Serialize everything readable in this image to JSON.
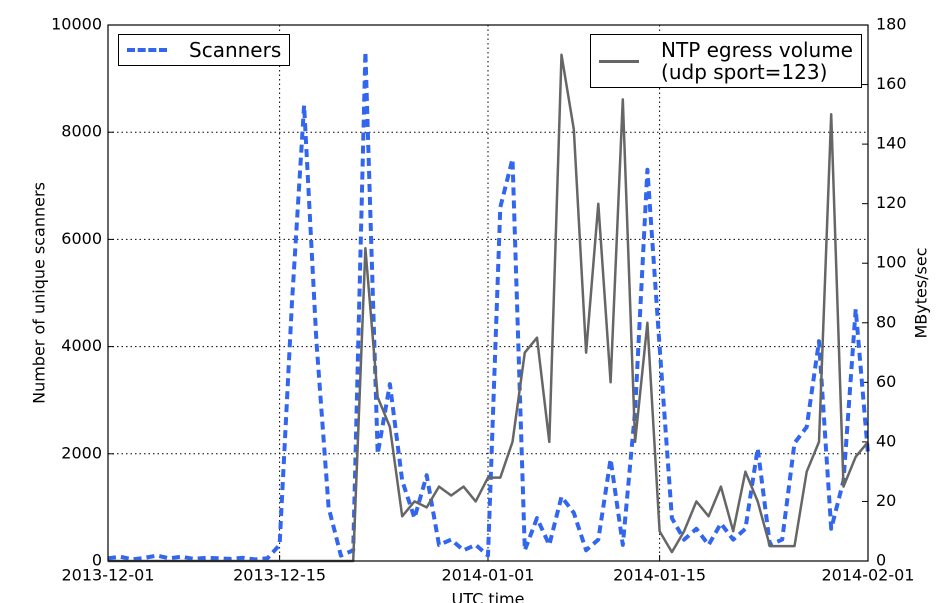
{
  "chart_data": {
    "type": "line",
    "xlabel": "UTC time",
    "ylabel": "Number of unique scanners",
    "y2label": "MBytes/sec",
    "x": [
      "2013-12-01",
      "2013-12-02",
      "2013-12-03",
      "2013-12-04",
      "2013-12-05",
      "2013-12-06",
      "2013-12-07",
      "2013-12-08",
      "2013-12-09",
      "2013-12-10",
      "2013-12-11",
      "2013-12-12",
      "2013-12-13",
      "2013-12-14",
      "2013-12-15",
      "2013-12-16",
      "2013-12-17",
      "2013-12-18",
      "2013-12-19",
      "2013-12-20",
      "2013-12-21",
      "2013-12-22",
      "2013-12-23",
      "2013-12-24",
      "2013-12-25",
      "2013-12-26",
      "2013-12-27",
      "2013-12-28",
      "2013-12-29",
      "2013-12-30",
      "2013-12-31",
      "2014-01-01",
      "2014-01-02",
      "2014-01-03",
      "2014-01-04",
      "2014-01-05",
      "2014-01-06",
      "2014-01-07",
      "2014-01-08",
      "2014-01-09",
      "2014-01-10",
      "2014-01-11",
      "2014-01-12",
      "2014-01-13",
      "2014-01-14",
      "2014-01-15",
      "2014-01-16",
      "2014-01-17",
      "2014-01-18",
      "2014-01-19",
      "2014-01-20",
      "2014-01-21",
      "2014-01-22",
      "2014-01-23",
      "2014-01-24",
      "2014-01-25",
      "2014-01-26",
      "2014-01-27",
      "2014-01-28",
      "2014-01-29",
      "2014-01-30",
      "2014-01-31",
      "2014-02-01"
    ],
    "series": [
      {
        "name": "Scanners",
        "color": "#3366ee",
        "style": "dashed",
        "axis": "y",
        "values": [
          50,
          80,
          30,
          60,
          100,
          50,
          80,
          40,
          60,
          50,
          40,
          60,
          30,
          50,
          300,
          4800,
          8500,
          4100,
          1000,
          100,
          200,
          9500,
          2000,
          3300,
          1500,
          800,
          1600,
          300,
          400,
          200,
          300,
          100,
          6600,
          7500,
          200,
          800,
          300,
          1200,
          900,
          200,
          400,
          1900,
          300,
          2800,
          7300,
          4000,
          800,
          400,
          600,
          300,
          700,
          400,
          600,
          2100,
          300,
          400,
          2200,
          2500,
          4100,
          600,
          1500,
          4700,
          2000
        ]
      },
      {
        "name": "NTP egress volume\n(udp sport=123)",
        "color": "#666666",
        "style": "solid",
        "axis": "y2",
        "values": [
          0,
          0,
          0,
          0,
          0,
          0,
          0,
          0,
          0,
          0,
          0,
          0,
          0,
          0,
          0,
          0,
          0,
          0,
          0,
          0,
          0,
          105,
          55,
          45,
          15,
          20,
          18,
          25,
          22,
          25,
          20,
          28,
          28,
          40,
          70,
          75,
          40,
          170,
          145,
          70,
          120,
          60,
          155,
          40,
          80,
          10,
          3,
          10,
          20,
          15,
          25,
          10,
          30,
          20,
          5,
          5,
          5,
          30,
          40,
          150,
          25,
          35,
          40
        ]
      }
    ],
    "xlim": [
      "2013-12-01",
      "2014-02-01"
    ],
    "xticks": [
      "2013-12-01",
      "2013-12-15",
      "2014-01-01",
      "2014-01-15",
      "2014-02-01"
    ],
    "ylim": [
      0,
      10000
    ],
    "yticks": [
      0,
      2000,
      4000,
      6000,
      8000,
      10000
    ],
    "y2lim": [
      0,
      180
    ],
    "y2ticks": [
      0,
      20,
      40,
      60,
      80,
      100,
      120,
      140,
      160,
      180
    ],
    "grid": true,
    "legend": [
      "upper left",
      "upper right"
    ]
  }
}
